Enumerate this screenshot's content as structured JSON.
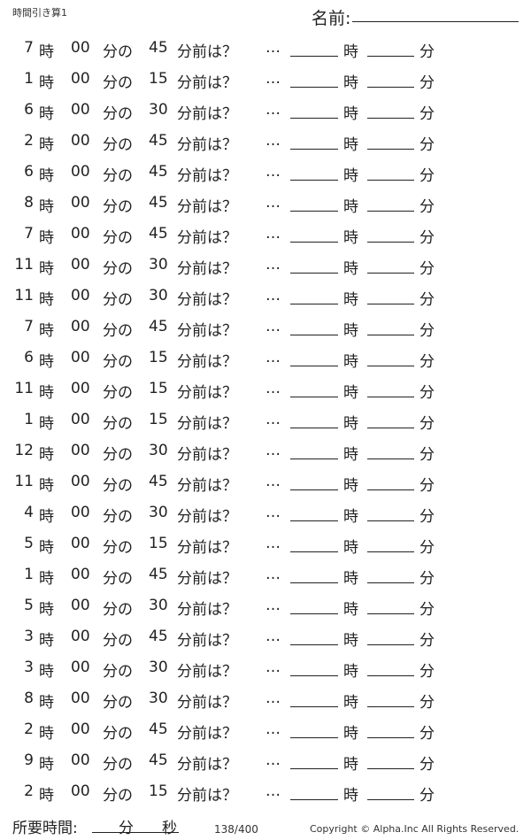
{
  "header": {
    "title": "時間引き算1",
    "name_label": "名前:"
  },
  "labels": {
    "hour": "時",
    "minute_of": "分の",
    "minute_before": "分前は？",
    "ellipsis": "…",
    "answer_hour": "時",
    "answer_minute": "分"
  },
  "problems": [
    {
      "hour": "7",
      "minute": "00",
      "offset": "45"
    },
    {
      "hour": "1",
      "minute": "00",
      "offset": "15"
    },
    {
      "hour": "6",
      "minute": "00",
      "offset": "30"
    },
    {
      "hour": "2",
      "minute": "00",
      "offset": "45"
    },
    {
      "hour": "6",
      "minute": "00",
      "offset": "45"
    },
    {
      "hour": "8",
      "minute": "00",
      "offset": "45"
    },
    {
      "hour": "7",
      "minute": "00",
      "offset": "45"
    },
    {
      "hour": "11",
      "minute": "00",
      "offset": "30"
    },
    {
      "hour": "11",
      "minute": "00",
      "offset": "30"
    },
    {
      "hour": "7",
      "minute": "00",
      "offset": "45"
    },
    {
      "hour": "6",
      "minute": "00",
      "offset": "15"
    },
    {
      "hour": "11",
      "minute": "00",
      "offset": "15"
    },
    {
      "hour": "1",
      "minute": "00",
      "offset": "15"
    },
    {
      "hour": "12",
      "minute": "00",
      "offset": "30"
    },
    {
      "hour": "11",
      "minute": "00",
      "offset": "45"
    },
    {
      "hour": "4",
      "minute": "00",
      "offset": "30"
    },
    {
      "hour": "5",
      "minute": "00",
      "offset": "15"
    },
    {
      "hour": "1",
      "minute": "00",
      "offset": "45"
    },
    {
      "hour": "5",
      "minute": "00",
      "offset": "30"
    },
    {
      "hour": "3",
      "minute": "00",
      "offset": "45"
    },
    {
      "hour": "3",
      "minute": "00",
      "offset": "30"
    },
    {
      "hour": "8",
      "minute": "00",
      "offset": "30"
    },
    {
      "hour": "2",
      "minute": "00",
      "offset": "45"
    },
    {
      "hour": "9",
      "minute": "00",
      "offset": "45"
    },
    {
      "hour": "2",
      "minute": "00",
      "offset": "15"
    }
  ],
  "footer": {
    "time_label": "所要時間:",
    "minutes": "分",
    "seconds": "秒",
    "page": "138/400",
    "copyright": "Copyright ©  Alpha.Inc All Rights Reserved."
  }
}
